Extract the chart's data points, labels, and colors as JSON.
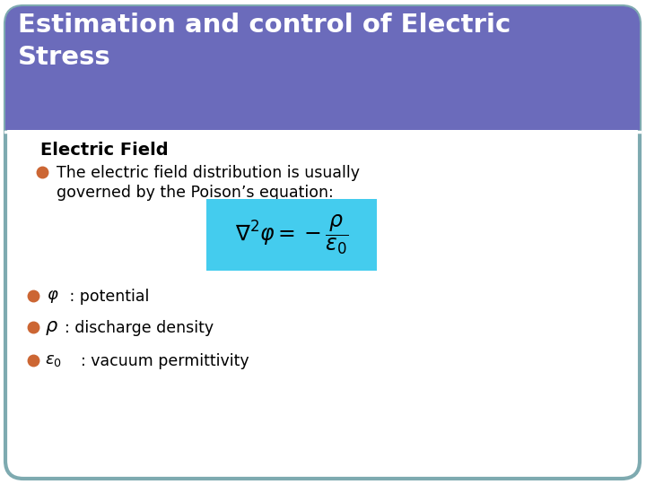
{
  "title_line1": "Estimation and control of Electric",
  "title_line2": "Stress",
  "title_bg_color": "#6B6BBB",
  "title_text_color": "#FFFFFF",
  "slide_bg_color": "#FFFFFF",
  "border_color": "#7EAAB0",
  "bullet_color": "#CC6633",
  "heading": "Electric Field",
  "bullet1_line1": "The electric field distribution is usually",
  "bullet1_line2": "governed by the Poison’s equation:",
  "eq_bg_color": "#44CCEE",
  "item1_text": " : potential",
  "item2_text": ": discharge density",
  "item3_text": ": vacuum permittivity"
}
